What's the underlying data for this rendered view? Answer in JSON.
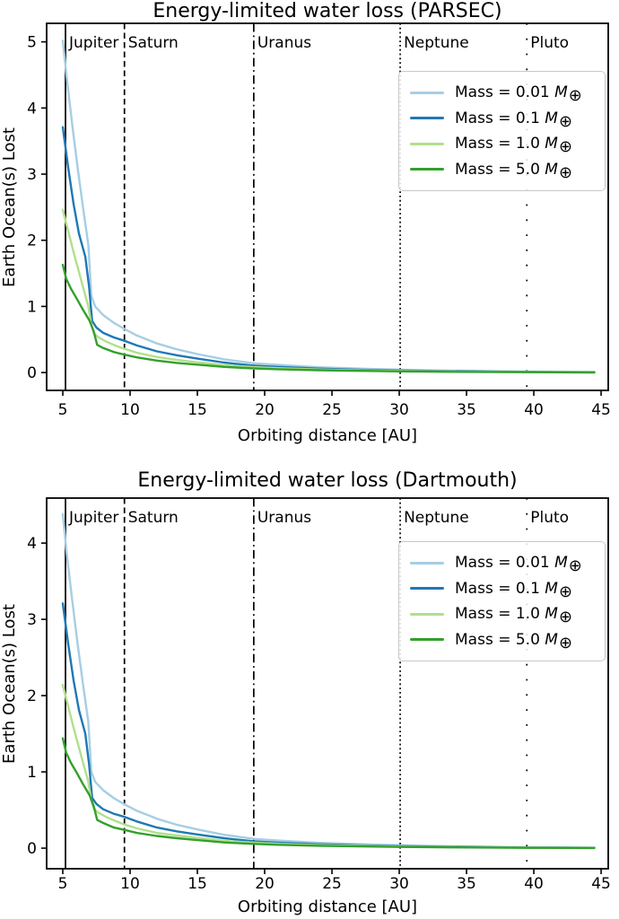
{
  "figure": {
    "background": "#ffffff",
    "text_color": "#000000",
    "axis_color": "#000000"
  },
  "chart_data": [
    {
      "type": "line",
      "title": "Energy-limited water loss (PARSEC)",
      "xlabel": "Orbiting distance [AU]",
      "ylabel": "Earth Ocean(s) Lost",
      "xlim": [
        3.8,
        45.53
      ],
      "ylim": [
        -0.27,
        5.28
      ],
      "x_ticks": [
        5,
        10,
        15,
        20,
        25,
        30,
        35,
        40,
        45
      ],
      "y_ticks": [
        0,
        1,
        2,
        3,
        4,
        5
      ],
      "grid": false,
      "legend_position": "upper right",
      "vlines": [
        {
          "label": "Jupiter",
          "x": 5.2,
          "style": "solid"
        },
        {
          "label": "Saturn",
          "x": 9.58,
          "style": "dashed"
        },
        {
          "label": "Uranus",
          "x": 19.19,
          "style": "dashdot"
        },
        {
          "label": "Neptune",
          "x": 30.07,
          "style": "dotted"
        },
        {
          "label": "Pluto",
          "x": 39.48,
          "style": "loosely-dotted"
        }
      ],
      "series": [
        {
          "name": "Mass = 0.01 M⊕",
          "mass_label": "Mass = 0.01",
          "symbol": "M",
          "subscript": "⊕",
          "color": "#a6cee3",
          "x": [
            5,
            5.3,
            5.7,
            6.1,
            6.5,
            6.9,
            7.12,
            7.4,
            8,
            8.8,
            9.58,
            10.5,
            12,
            13.5,
            15,
            17,
            19.19,
            21,
            24,
            27,
            30.07,
            34,
            39.48,
            44.5
          ],
          "y": [
            5.02,
            4.45,
            3.75,
            3.1,
            2.5,
            1.93,
            1.16,
            1.0,
            0.87,
            0.75,
            0.66,
            0.56,
            0.44,
            0.35,
            0.28,
            0.2,
            0.14,
            0.115,
            0.08,
            0.06,
            0.042,
            0.027,
            0.013,
            0.007
          ]
        },
        {
          "name": "Mass = 0.1 M⊕",
          "mass_label": "Mass = 0.1",
          "symbol": "M",
          "subscript": "⊕",
          "color": "#1f78b4",
          "x": [
            5,
            5.4,
            5.8,
            6.2,
            6.67,
            6.95,
            7.18,
            7.5,
            8,
            8.8,
            9.58,
            10.5,
            12,
            13.5,
            15,
            17,
            19.19,
            21,
            24,
            27,
            30.07,
            34,
            39.48,
            44.5
          ],
          "y": [
            3.71,
            3.1,
            2.55,
            2.1,
            1.75,
            1.3,
            0.78,
            0.68,
            0.6,
            0.53,
            0.48,
            0.41,
            0.32,
            0.26,
            0.21,
            0.15,
            0.105,
            0.085,
            0.06,
            0.044,
            0.031,
            0.02,
            0.01,
            0.005
          ]
        },
        {
          "name": "Mass = 1.0 M⊕",
          "mass_label": "Mass = 1.0",
          "symbol": "M",
          "subscript": "⊕",
          "color": "#b2df8a",
          "x": [
            5,
            5.4,
            5.8,
            6.2,
            6.6,
            6.9,
            7.1,
            7.3,
            7.6,
            8.2,
            9,
            9.58,
            10.5,
            12,
            13.5,
            15,
            17,
            19.19,
            21,
            24,
            27,
            30.07,
            34,
            39.48,
            44.5
          ],
          "y": [
            2.46,
            2.14,
            1.82,
            1.52,
            1.22,
            1.0,
            0.74,
            0.6,
            0.54,
            0.47,
            0.4,
            0.36,
            0.3,
            0.235,
            0.19,
            0.155,
            0.11,
            0.082,
            0.066,
            0.046,
            0.034,
            0.024,
            0.015,
            0.007,
            0.003
          ]
        },
        {
          "name": "Mass = 5.0 M⊕",
          "mass_label": "Mass = 5.0",
          "symbol": "M",
          "subscript": "⊕",
          "color": "#33a02c",
          "x": [
            5,
            5.25,
            5.6,
            6,
            6.5,
            7,
            7.3,
            7.55,
            8,
            8.8,
            9.58,
            10.5,
            12,
            13.5,
            15,
            17,
            19.19,
            21,
            24,
            27,
            30.07,
            34,
            39.48,
            44.5
          ],
          "y": [
            1.63,
            1.42,
            1.27,
            1.13,
            0.95,
            0.78,
            0.62,
            0.42,
            0.37,
            0.31,
            0.27,
            0.23,
            0.18,
            0.145,
            0.12,
            0.085,
            0.063,
            0.05,
            0.035,
            0.026,
            0.018,
            0.011,
            0.005,
            0.002
          ]
        }
      ]
    },
    {
      "type": "line",
      "title": "Energy-limited water loss (Dartmouth)",
      "xlabel": "Orbiting distance [AU]",
      "ylabel": "Earth Ocean(s) Lost",
      "xlim": [
        3.8,
        45.53
      ],
      "ylim": [
        -0.27,
        4.59
      ],
      "x_ticks": [
        5,
        10,
        15,
        20,
        25,
        30,
        35,
        40,
        45
      ],
      "y_ticks": [
        0,
        1,
        2,
        3,
        4
      ],
      "grid": false,
      "legend_position": "upper right",
      "vlines": [
        {
          "label": "Jupiter",
          "x": 5.2,
          "style": "solid"
        },
        {
          "label": "Saturn",
          "x": 9.58,
          "style": "dashed"
        },
        {
          "label": "Uranus",
          "x": 19.19,
          "style": "dashdot"
        },
        {
          "label": "Neptune",
          "x": 30.07,
          "style": "dotted"
        },
        {
          "label": "Pluto",
          "x": 39.48,
          "style": "loosely-dotted"
        }
      ],
      "series": [
        {
          "name": "Mass = 0.01 M⊕",
          "mass_label": "Mass = 0.01",
          "symbol": "M",
          "subscript": "⊕",
          "color": "#a6cee3",
          "x": [
            5,
            5.3,
            5.7,
            6.1,
            6.5,
            6.9,
            7.12,
            7.4,
            8,
            8.8,
            9.58,
            10.5,
            12,
            13.5,
            15,
            17,
            19.19,
            21,
            24,
            27,
            30.07,
            34,
            39.48,
            44.5
          ],
          "y": [
            4.38,
            3.85,
            3.25,
            2.68,
            2.15,
            1.65,
            1.0,
            0.87,
            0.76,
            0.655,
            0.575,
            0.49,
            0.385,
            0.305,
            0.245,
            0.175,
            0.122,
            0.1,
            0.07,
            0.052,
            0.037,
            0.024,
            0.011,
            0.006
          ]
        },
        {
          "name": "Mass = 0.1 M⊕",
          "mass_label": "Mass = 0.1",
          "symbol": "M",
          "subscript": "⊕",
          "color": "#1f78b4",
          "x": [
            5,
            5.4,
            5.8,
            6.2,
            6.67,
            6.95,
            7.18,
            7.5,
            8,
            8.8,
            9.58,
            10.5,
            12,
            13.5,
            15,
            17,
            19.19,
            21,
            24,
            27,
            30.07,
            34,
            39.48,
            44.5
          ],
          "y": [
            3.21,
            2.68,
            2.2,
            1.81,
            1.5,
            1.1,
            0.66,
            0.58,
            0.51,
            0.45,
            0.41,
            0.35,
            0.27,
            0.22,
            0.18,
            0.13,
            0.09,
            0.073,
            0.051,
            0.037,
            0.026,
            0.017,
            0.008,
            0.004
          ]
        },
        {
          "name": "Mass = 1.0 M⊕",
          "mass_label": "Mass = 1.0",
          "symbol": "M",
          "subscript": "⊕",
          "color": "#b2df8a",
          "x": [
            5,
            5.4,
            5.8,
            6.2,
            6.6,
            6.9,
            7.1,
            7.3,
            7.6,
            8.2,
            9,
            9.58,
            10.5,
            12,
            13.5,
            15,
            17,
            19.19,
            21,
            24,
            27,
            30.07,
            34,
            39.48,
            44.5
          ],
          "y": [
            2.14,
            1.86,
            1.58,
            1.32,
            1.06,
            0.87,
            0.64,
            0.52,
            0.47,
            0.41,
            0.35,
            0.31,
            0.26,
            0.2,
            0.165,
            0.135,
            0.096,
            0.071,
            0.057,
            0.04,
            0.03,
            0.021,
            0.013,
            0.006,
            0.003
          ]
        },
        {
          "name": "Mass = 5.0 M⊕",
          "mass_label": "Mass = 5.0",
          "symbol": "M",
          "subscript": "⊕",
          "color": "#33a02c",
          "x": [
            5,
            5.25,
            5.6,
            6,
            6.5,
            7,
            7.3,
            7.55,
            8,
            8.8,
            9.58,
            10.5,
            12,
            13.5,
            15,
            17,
            19.19,
            21,
            24,
            27,
            30.07,
            34,
            39.48,
            44.5
          ],
          "y": [
            1.44,
            1.25,
            1.12,
            1.0,
            0.84,
            0.69,
            0.55,
            0.37,
            0.33,
            0.27,
            0.24,
            0.2,
            0.16,
            0.13,
            0.105,
            0.075,
            0.056,
            0.044,
            0.031,
            0.023,
            0.016,
            0.01,
            0.004,
            0.002
          ]
        }
      ]
    }
  ]
}
